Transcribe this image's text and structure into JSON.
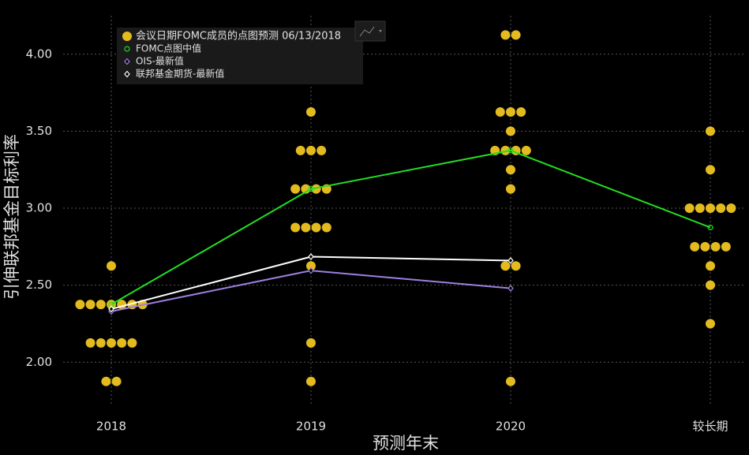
{
  "chart_data": {
    "type": "dotplot",
    "categories": [
      "2018",
      "2019",
      "2020",
      "较长期"
    ],
    "x_label": "预测年末",
    "y_label": "引伸联邦基金目标利率",
    "ylim": [
      1.73,
      4.25
    ],
    "yticks": [
      {
        "value": 2,
        "label": "2.00"
      },
      {
        "value": 2.5,
        "label": "2.50"
      },
      {
        "value": 3,
        "label": "3.00"
      },
      {
        "value": 3.5,
        "label": "3.50"
      },
      {
        "value": 4,
        "label": "4.00"
      }
    ],
    "grid": true,
    "dots": {
      "name": "会议日期FOMC成员的点图预测 06/13/2018",
      "color": "#e3bb1f",
      "values": [
        [
          2.625,
          2.375,
          2.375,
          2.375,
          2.375,
          2.375,
          2.375,
          2.375,
          2.125,
          2.125,
          2.125,
          2.125,
          2.125,
          1.875,
          1.875
        ],
        [
          3.625,
          3.375,
          3.375,
          3.375,
          3.125,
          3.125,
          3.125,
          3.125,
          2.875,
          2.875,
          2.875,
          2.875,
          2.625,
          2.125,
          1.875
        ],
        [
          4.125,
          4.125,
          3.625,
          3.625,
          3.625,
          3.5,
          3.375,
          3.375,
          3.375,
          3.375,
          3.25,
          3.125,
          2.625,
          2.625,
          1.875
        ],
        [
          3.5,
          3.25,
          3.0,
          3.0,
          3.0,
          3.0,
          3.0,
          2.75,
          2.75,
          2.75,
          2.75,
          2.625,
          2.5,
          2.25
        ]
      ]
    },
    "series": [
      {
        "name": "FOMC点图中值",
        "color": "#22dd22",
        "marker": "circle",
        "values": [
          2.375,
          3.125,
          3.375,
          2.875
        ]
      },
      {
        "name": "OIS-最新值",
        "color": "#9f7fe0",
        "marker": "diamond",
        "values": [
          2.33,
          2.595,
          2.48,
          null
        ]
      },
      {
        "name": "联邦基金期货-最新值",
        "color": "#ffffff",
        "marker": "diamond",
        "values": [
          2.345,
          2.685,
          2.66,
          null
        ]
      }
    ]
  }
}
